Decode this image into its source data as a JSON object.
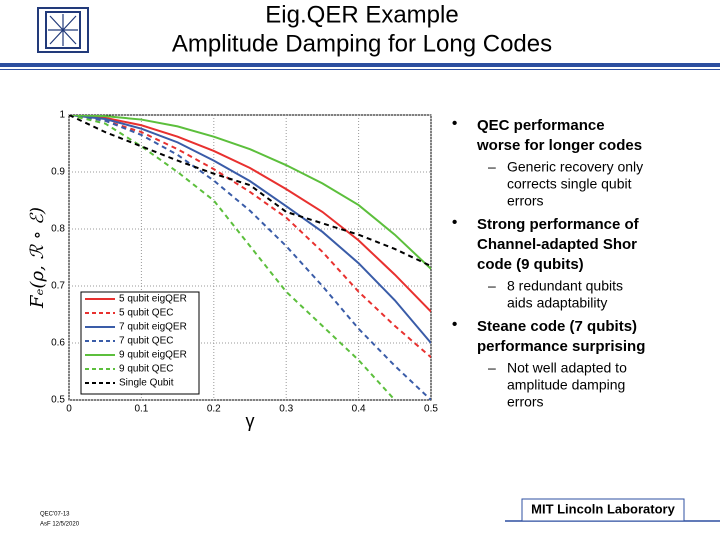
{
  "slide": {
    "title": "Eig.QER Example",
    "subtitle": "Amplitude Damping for Long Codes",
    "bullets": [
      {
        "lines": [
          "QEC performance",
          "worse for longer codes"
        ],
        "sub": [
          "Generic recovery only",
          "corrects single qubit",
          "errors"
        ]
      },
      {
        "lines": [
          "Strong performance of",
          "Channel-adapted Shor",
          "code (9 qubits)"
        ],
        "sub": [
          "8 redundant qubits",
          "aids adaptability"
        ]
      },
      {
        "lines": [
          "Steane code (7 qubits)",
          "performance surprising"
        ],
        "sub": [
          "Not well adapted to",
          "amplitude damping",
          "errors"
        ]
      }
    ],
    "footer_id": "QEC'07-13",
    "footer_date": "AsF 12/5/2020",
    "footer_lab": "MIT Lincoln Laboratory"
  },
  "chart_data": {
    "type": "line",
    "xlabel": "γ",
    "ylabel": "Fₑ(ρ, ℛ ∘ ℰ)",
    "x": [
      0,
      0.05,
      0.1,
      0.15,
      0.2,
      0.25,
      0.3,
      0.35,
      0.4,
      0.45,
      0.5
    ],
    "xlim": [
      0,
      0.5
    ],
    "xticks": [
      0,
      0.1,
      0.2,
      0.3,
      0.4,
      0.5
    ],
    "ylim": [
      0.5,
      1
    ],
    "yticks": [
      0.5,
      0.6,
      0.7,
      0.8,
      0.9,
      1
    ],
    "grid": true,
    "legend": "lower left",
    "series": [
      {
        "name": "5 qubit eigQER",
        "color": "#e8312f",
        "dash": false,
        "values": [
          1,
          0.995,
          0.982,
          0.962,
          0.937,
          0.907,
          0.87,
          0.83,
          0.78,
          0.72,
          0.655
        ]
      },
      {
        "name": "5 qubit QEC",
        "color": "#e8312f",
        "dash": true,
        "values": [
          1,
          0.99,
          0.97,
          0.94,
          0.905,
          0.865,
          0.82,
          0.76,
          0.69,
          0.63,
          0.575
        ]
      },
      {
        "name": "7 qubit eigQER",
        "color": "#3a5ca8",
        "dash": false,
        "values": [
          1,
          0.993,
          0.976,
          0.952,
          0.92,
          0.884,
          0.84,
          0.795,
          0.74,
          0.675,
          0.6
        ]
      },
      {
        "name": "7 qubit QEC",
        "color": "#3a5ca8",
        "dash": true,
        "values": [
          1,
          0.99,
          0.965,
          0.93,
          0.885,
          0.832,
          0.77,
          0.7,
          0.625,
          0.56,
          0.5
        ]
      },
      {
        "name": "9 qubit eigQER",
        "color": "#5cbf3c",
        "dash": false,
        "values": [
          1,
          0.998,
          0.992,
          0.98,
          0.962,
          0.94,
          0.912,
          0.88,
          0.842,
          0.79,
          0.73
        ]
      },
      {
        "name": "9 qubit QEC",
        "color": "#5cbf3c",
        "dash": true,
        "values": [
          1,
          0.985,
          0.945,
          0.9,
          0.85,
          0.77,
          0.69,
          0.63,
          0.57,
          0.5,
          null
        ]
      },
      {
        "name": "Single Qubit",
        "color": "#000000",
        "dash": true,
        "values": [
          1,
          0.97,
          0.945,
          0.92,
          0.897,
          0.877,
          0.83,
          0.81,
          0.79,
          0.765,
          0.735
        ]
      }
    ]
  }
}
